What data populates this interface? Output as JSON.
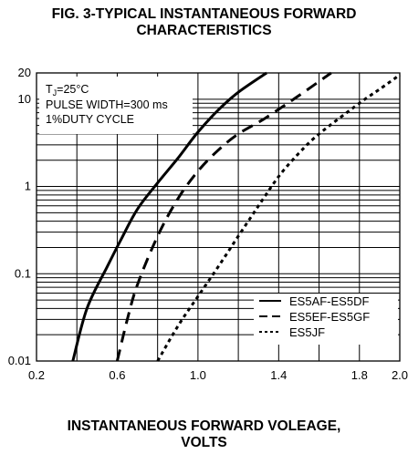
{
  "figure_title": {
    "line1": "FIG. 3-TYPICAL INSTANTANEOUS FORWARD",
    "line2": "CHARACTERISTICS"
  },
  "x_axis_title": {
    "line1": "INSTANTANEOUS FORWARD VOLEAGE,",
    "line2": "VOLTS"
  },
  "conditions": {
    "tj_prefix": "T",
    "tj_sub": "J",
    "tj_value": "=25°C",
    "pulse": "PULSE WIDTH=300 ms",
    "duty": "1%DUTY CYCLE"
  },
  "chart_data": {
    "type": "line",
    "title": "FIG. 3-TYPICAL INSTANTANEOUS FORWARD CHARACTERISTICS",
    "xlabel": "INSTANTANEOUS FORWARD VOLEAGE, VOLTS",
    "ylabel": "",
    "xlim": [
      0.2,
      2.0
    ],
    "ylim": [
      0.01,
      20
    ],
    "y_scale": "log",
    "grid": "log minor gridlines, white band near y=1 and y=0.1",
    "x_ticks": [
      "0.2",
      "0.6",
      "1.0",
      "1.4",
      "1.8",
      "2.0"
    ],
    "x_tick_values": [
      0.2,
      0.6,
      1.0,
      1.4,
      1.8,
      2.0
    ],
    "y_ticks": [
      "20",
      "10",
      "1",
      "0.1",
      "0.01"
    ],
    "y_tick_values": [
      20,
      10,
      1,
      0.1,
      0.01
    ],
    "legend_position": "bottom-right",
    "series": [
      {
        "name": "ES5AF-ES5DF",
        "style": "solid",
        "points": [
          [
            0.38,
            0.01
          ],
          [
            0.45,
            0.04
          ],
          [
            0.55,
            0.12
          ],
          [
            0.62,
            0.25
          ],
          [
            0.7,
            0.55
          ],
          [
            0.8,
            1.1
          ],
          [
            0.9,
            2.1
          ],
          [
            1.0,
            4.2
          ],
          [
            1.1,
            7.5
          ],
          [
            1.2,
            12
          ],
          [
            1.34,
            20
          ]
        ]
      },
      {
        "name": "ES5EF-ES5GF",
        "style": "dashed",
        "points": [
          [
            0.6,
            0.01
          ],
          [
            0.65,
            0.03
          ],
          [
            0.7,
            0.075
          ],
          [
            0.8,
            0.27
          ],
          [
            0.9,
            0.72
          ],
          [
            1.0,
            1.5
          ],
          [
            1.1,
            2.6
          ],
          [
            1.2,
            4.0
          ],
          [
            1.33,
            6.0
          ],
          [
            1.5,
            11
          ],
          [
            1.66,
            20
          ]
        ]
      },
      {
        "name": "ES5JF",
        "style": "dotted",
        "points": [
          [
            0.8,
            0.01
          ],
          [
            0.9,
            0.025
          ],
          [
            1.0,
            0.055
          ],
          [
            1.1,
            0.12
          ],
          [
            1.2,
            0.27
          ],
          [
            1.3,
            0.6
          ],
          [
            1.4,
            1.3
          ],
          [
            1.5,
            2.4
          ],
          [
            1.6,
            4.0
          ],
          [
            1.8,
            9.0
          ],
          [
            1.9,
            13
          ],
          [
            2.0,
            19
          ]
        ]
      }
    ]
  }
}
